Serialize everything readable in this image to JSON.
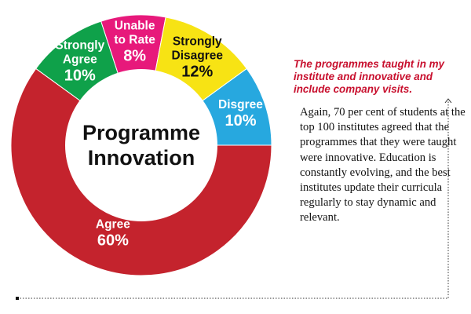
{
  "chart_data": {
    "type": "pie",
    "variant": "donut",
    "title_lines": [
      "Programme",
      "Innovation"
    ],
    "slices": [
      {
        "key": "strongly_agree",
        "label_lines": [
          "Strongly",
          "Agree"
        ],
        "value": 10,
        "value_label": "10%",
        "color": "#0fa14a",
        "text_color": "#ffffff"
      },
      {
        "key": "unable_to_rate",
        "label_lines": [
          "Unable",
          "to Rate"
        ],
        "value": 8,
        "value_label": "8%",
        "color": "#e7197b",
        "text_color": "#ffffff"
      },
      {
        "key": "strongly_disagree",
        "label_lines": [
          "Strongly",
          "Disagree"
        ],
        "value": 12,
        "value_label": "12%",
        "color": "#f7e314",
        "text_color": "#111111"
      },
      {
        "key": "disagree",
        "label_lines": [
          "Disgree"
        ],
        "value": 10,
        "value_label": "10%",
        "color": "#27a8df",
        "text_color": "#ffffff"
      },
      {
        "key": "agree",
        "label_lines": [
          "Agree"
        ],
        "value": 60,
        "value_label": "60%",
        "color": "#c4232d",
        "text_color": "#ffffff"
      }
    ]
  },
  "article": {
    "heading": "The programmes taught in my institute and innovative and include company visits.",
    "body": "Again, 70 per cent of students at the top 100 institutes agreed that the programmes that they were taught were innovative. Education is constantly evolving, and the best institutes update their curricula regularly to stay dynamic and relevant.",
    "heading_color": "#c8102e"
  }
}
